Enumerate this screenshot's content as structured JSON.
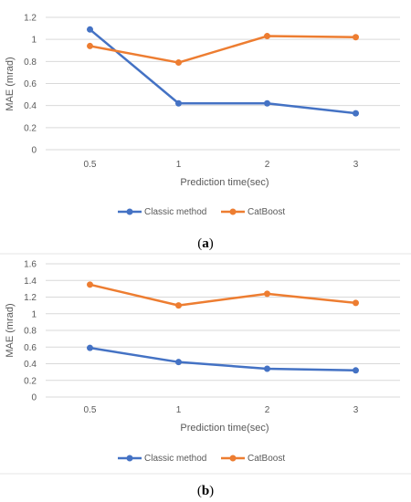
{
  "chart_data": [
    {
      "type": "line",
      "panel_label": "a",
      "categories": [
        "0.5",
        "1",
        "2",
        "3"
      ],
      "xlabel": "Prediction time(sec)",
      "ylabel": "MAE (mrad)",
      "ylim": [
        0,
        1.2
      ],
      "yticks": [
        "0",
        "0.2",
        "0.4",
        "0.6",
        "0.8",
        "1",
        "1.2"
      ],
      "grid": true,
      "legend_position": "bottom",
      "series": [
        {
          "name": "Classic method",
          "color": "#4472C4",
          "values": [
            1.09,
            0.42,
            0.42,
            0.33
          ]
        },
        {
          "name": "CatBoost",
          "color": "#ED7D31",
          "values": [
            0.94,
            0.79,
            1.03,
            1.02
          ]
        }
      ]
    },
    {
      "type": "line",
      "panel_label": "b",
      "categories": [
        "0.5",
        "1",
        "2",
        "3"
      ],
      "xlabel": "Prediction time(sec)",
      "ylabel": "MAE (mrad)",
      "ylim": [
        0,
        1.6
      ],
      "yticks": [
        "0",
        "0.2",
        "0.4",
        "0.6",
        "0.8",
        "1",
        "1.2",
        "1.4",
        "1.6"
      ],
      "grid": true,
      "legend_position": "bottom",
      "series": [
        {
          "name": "Classic method",
          "color": "#4472C4",
          "values": [
            0.59,
            0.42,
            0.34,
            0.32
          ]
        },
        {
          "name": "CatBoost",
          "color": "#ED7D31",
          "values": [
            1.35,
            1.1,
            1.24,
            1.13
          ]
        }
      ]
    }
  ]
}
